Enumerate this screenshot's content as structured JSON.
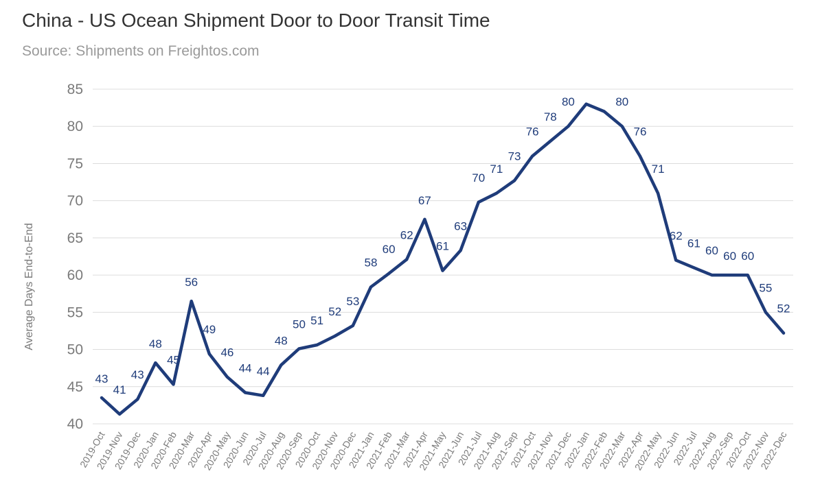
{
  "chart_data": {
    "type": "line",
    "title": "China - US Ocean Shipment Door to Door Transit Time",
    "subtitle": "Source: Shipments on Freightos.com",
    "xlabel": "",
    "ylabel": "Average Days End-to-End",
    "ylim": [
      40,
      85
    ],
    "yticks": [
      40,
      45,
      50,
      55,
      60,
      65,
      70,
      75,
      80,
      85
    ],
    "grid": true,
    "line_color": "#1f3c7a",
    "categories": [
      "2019-Oct",
      "2019-Nov",
      "2019-Dec",
      "2020-Jan",
      "2020-Feb",
      "2020-Mar",
      "2020-Apr",
      "2020-May",
      "2020-Jun",
      "2020-Jul",
      "2020-Aug",
      "2020-Sep",
      "2020-Oct",
      "2020-Nov",
      "2020-Dec",
      "2021-Jan",
      "2021-Feb",
      "2021-Mar",
      "2021-Apr",
      "2021-May",
      "2021-Jun",
      "2021-Jul",
      "2021-Aug",
      "2021-Sep",
      "2021-Oct",
      "2021-Nov",
      "2021-Dec",
      "2022-Jan",
      "2022-Feb",
      "2022-Mar",
      "2022-Apr",
      "2022-May",
      "2022-Jun",
      "2022-Jul",
      "2022-Aug",
      "2022-Sep",
      "2022-Oct",
      "2022-Nov",
      "2022-Dec"
    ],
    "values": [
      43.5,
      41.3,
      43.3,
      48.2,
      45.3,
      56.5,
      49.4,
      46.3,
      44.2,
      43.8,
      47.9,
      50.1,
      50.6,
      51.8,
      53.2,
      58.4,
      60.2,
      62.1,
      67.5,
      60.6,
      63.3,
      69.8,
      71.0,
      72.7,
      76.0,
      78.0,
      80.0,
      83.0,
      82.0,
      80.0,
      76.0,
      71.0,
      62.0,
      61.0,
      60.0,
      60.0,
      60.0,
      55.0,
      52.2
    ],
    "labels": [
      "43",
      "41",
      "43",
      "48",
      "45",
      "56",
      "49",
      "46",
      "44",
      "44",
      "48",
      "50",
      "51",
      "52",
      "53",
      "58",
      "60",
      "62",
      "67",
      "61",
      "63",
      "70",
      "71",
      "73",
      "76",
      "78",
      "80",
      "",
      "",
      "80",
      "76",
      "71",
      "62",
      "61",
      "60",
      "60",
      "60",
      "55",
      "52"
    ]
  }
}
